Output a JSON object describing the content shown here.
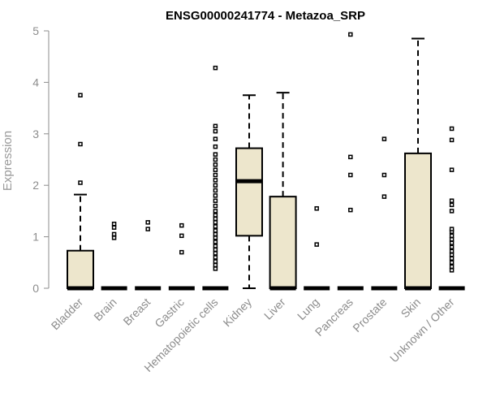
{
  "chart_data": {
    "type": "boxplot",
    "title": "ENSG00000241774 - Metazoa_SRP",
    "ylabel": "Expression",
    "xlabel": "",
    "ylim": [
      0,
      5
    ],
    "yticks": [
      0,
      1,
      2,
      3,
      4,
      5
    ],
    "colors": {
      "box_fill": "#ede6cc",
      "stroke": "#000000",
      "axis": "#8c8c8c"
    },
    "categories": [
      "Bladder",
      "Brain",
      "Breast",
      "Gastric",
      "Hematopoietic cells",
      "Kidney",
      "Liver",
      "Lung",
      "Pancreas",
      "Prostate",
      "Skin",
      "Unknown / Other"
    ],
    "boxes": [
      {
        "category": "Bladder",
        "q1": 0,
        "median": 0,
        "q3": 0.73,
        "whisker_low": 0,
        "whisker_high": 1.82,
        "outliers": [
          2.05,
          2.8,
          3.75
        ]
      },
      {
        "category": "Brain",
        "q1": 0,
        "median": 0,
        "q3": 0,
        "whisker_low": 0,
        "whisker_high": 0,
        "outliers": [
          0.98,
          1.05,
          1.18,
          1.25
        ]
      },
      {
        "category": "Breast",
        "q1": 0,
        "median": 0,
        "q3": 0,
        "whisker_low": 0,
        "whisker_high": 0,
        "outliers": [
          1.15,
          1.28
        ]
      },
      {
        "category": "Gastric",
        "q1": 0,
        "median": 0,
        "q3": 0,
        "whisker_low": 0,
        "whisker_high": 0,
        "outliers": [
          0.7,
          1.02,
          1.22
        ]
      },
      {
        "category": "Hematopoietic cells",
        "q1": 0,
        "median": 0,
        "q3": 0,
        "whisker_low": 0,
        "whisker_high": 0,
        "outliers": [
          0.38,
          0.45,
          0.52,
          0.6,
          0.68,
          0.75,
          0.82,
          0.9,
          0.98,
          1.05,
          1.12,
          1.2,
          1.28,
          1.35,
          1.42,
          1.5,
          1.6,
          1.7,
          1.8,
          1.9,
          2.0,
          2.1,
          2.2,
          2.3,
          2.4,
          2.5,
          2.6,
          2.75,
          2.9,
          3.05,
          3.15,
          4.28
        ]
      },
      {
        "category": "Kidney",
        "q1": 1.02,
        "median": 2.08,
        "q3": 2.72,
        "whisker_low": 0,
        "whisker_high": 3.75,
        "outliers": []
      },
      {
        "category": "Liver",
        "q1": 0,
        "median": 0,
        "q3": 1.78,
        "whisker_low": 0,
        "whisker_high": 3.8,
        "outliers": []
      },
      {
        "category": "Lung",
        "q1": 0,
        "median": 0,
        "q3": 0,
        "whisker_low": 0,
        "whisker_high": 0,
        "outliers": [
          0.85,
          1.55
        ]
      },
      {
        "category": "Pancreas",
        "q1": 0,
        "median": 0,
        "q3": 0,
        "whisker_low": 0,
        "whisker_high": 0,
        "outliers": [
          1.52,
          2.2,
          2.55,
          4.93
        ]
      },
      {
        "category": "Prostate",
        "q1": 0,
        "median": 0,
        "q3": 0,
        "whisker_low": 0,
        "whisker_high": 0,
        "outliers": [
          1.78,
          2.2,
          2.9
        ]
      },
      {
        "category": "Skin",
        "q1": 0,
        "median": 0,
        "q3": 2.62,
        "whisker_low": 0,
        "whisker_high": 4.85,
        "outliers": []
      },
      {
        "category": "Unknown / Other",
        "q1": 0,
        "median": 0,
        "q3": 0,
        "whisker_low": 0,
        "whisker_high": 0,
        "outliers": [
          0.35,
          0.42,
          0.5,
          0.58,
          0.65,
          0.72,
          0.8,
          0.88,
          0.95,
          1.02,
          1.1,
          1.15,
          1.5,
          1.62,
          1.7,
          2.3,
          2.88,
          3.1
        ]
      }
    ]
  }
}
